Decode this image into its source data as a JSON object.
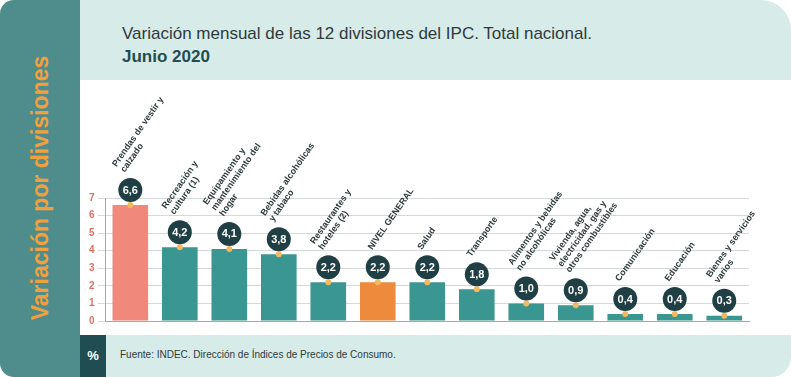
{
  "chart_data": {
    "type": "bar",
    "title": "Variación mensual de las 12 divisiones del IPC. Total nacional.",
    "subtitle": "Junio 2020",
    "side_title": "Variación por divisiones",
    "y_label": "%",
    "source": "Fuente: INDEC. Dirección de Índices de Precios de Consumo.",
    "categories": [
      "Prendas de vestir y calzado",
      "Recreación y cultura (1)",
      "Equipamiento y mantenimiento del hogar",
      "Bebidas alcohólicas y tabaco",
      "Restaurantes y hoteles (2)",
      "NIVEL GENERAL",
      "Salud",
      "Transporte",
      "Alimentos y bebidas no alcohólicas",
      "Vivienda, agua, electricidad, gas y otros combustibles",
      "Comunicación",
      "Educación",
      "Bienes y servicios varios"
    ],
    "values": [
      6.6,
      4.2,
      4.1,
      3.8,
      2.2,
      2.2,
      2.2,
      1.8,
      1.0,
      0.9,
      0.4,
      0.4,
      0.3
    ],
    "value_labels": [
      "6,6",
      "4,2",
      "4,1",
      "3,8",
      "2,2",
      "2,2",
      "2,2",
      "1,8",
      "1,0",
      "0,9",
      "0,4",
      "0,4",
      "0,3"
    ],
    "colors": [
      "#f0897c",
      "#3a9690",
      "#3a9690",
      "#3a9690",
      "#3a9690",
      "#ee8a3c",
      "#3a9690",
      "#3a9690",
      "#3a9690",
      "#3a9690",
      "#3a9690",
      "#3a9690",
      "#3a9690"
    ],
    "ylim": [
      0,
      7
    ],
    "yticks": [
      0,
      1,
      2,
      3,
      4,
      5,
      6,
      7
    ],
    "grid": true,
    "data_labels": true
  }
}
